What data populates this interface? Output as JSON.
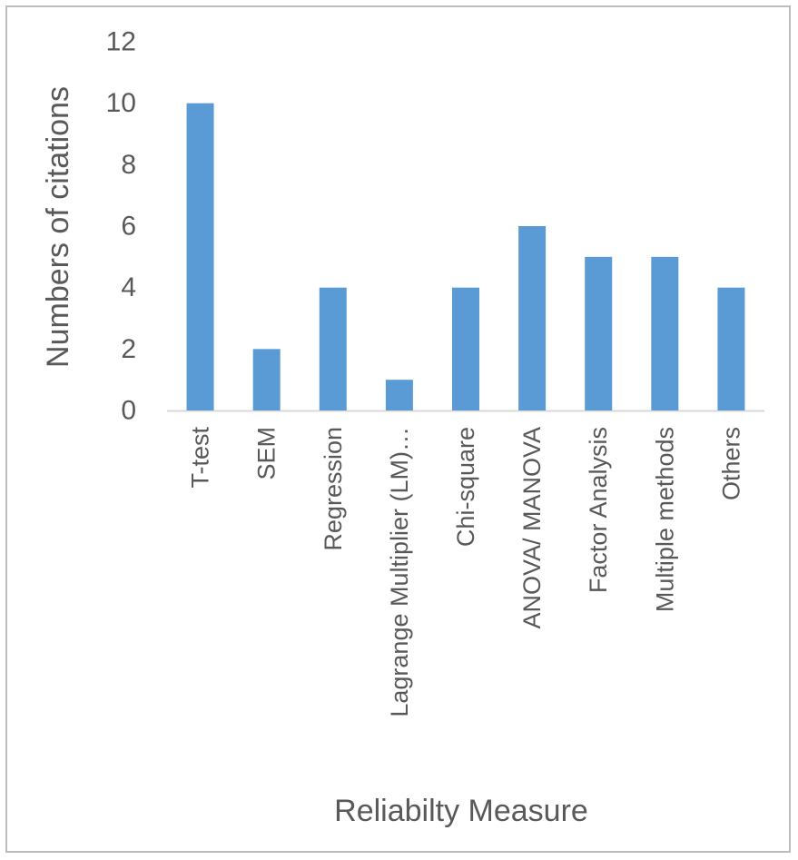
{
  "chart_data": {
    "type": "bar",
    "categories": [
      "T-test",
      "SEM",
      "Regression",
      "Lagrange Multiplier (LM)…",
      "Chi-square",
      "ANOVA/ MANOVA",
      "Factor Analysis",
      "Multiple methods",
      "Others"
    ],
    "values": [
      10,
      2,
      4,
      1,
      4,
      6,
      5,
      5,
      4
    ],
    "title": "",
    "xlabel": "Reliabilty Measure",
    "ylabel": "Numbers of citations",
    "ylim": [
      0,
      12
    ],
    "yticks": [
      0,
      2,
      4,
      6,
      8,
      10,
      12
    ],
    "grid": false,
    "legend": "none",
    "bar_color": "#5b9bd5",
    "axis_color": "#d9d9d9",
    "text_color": "#595959"
  }
}
